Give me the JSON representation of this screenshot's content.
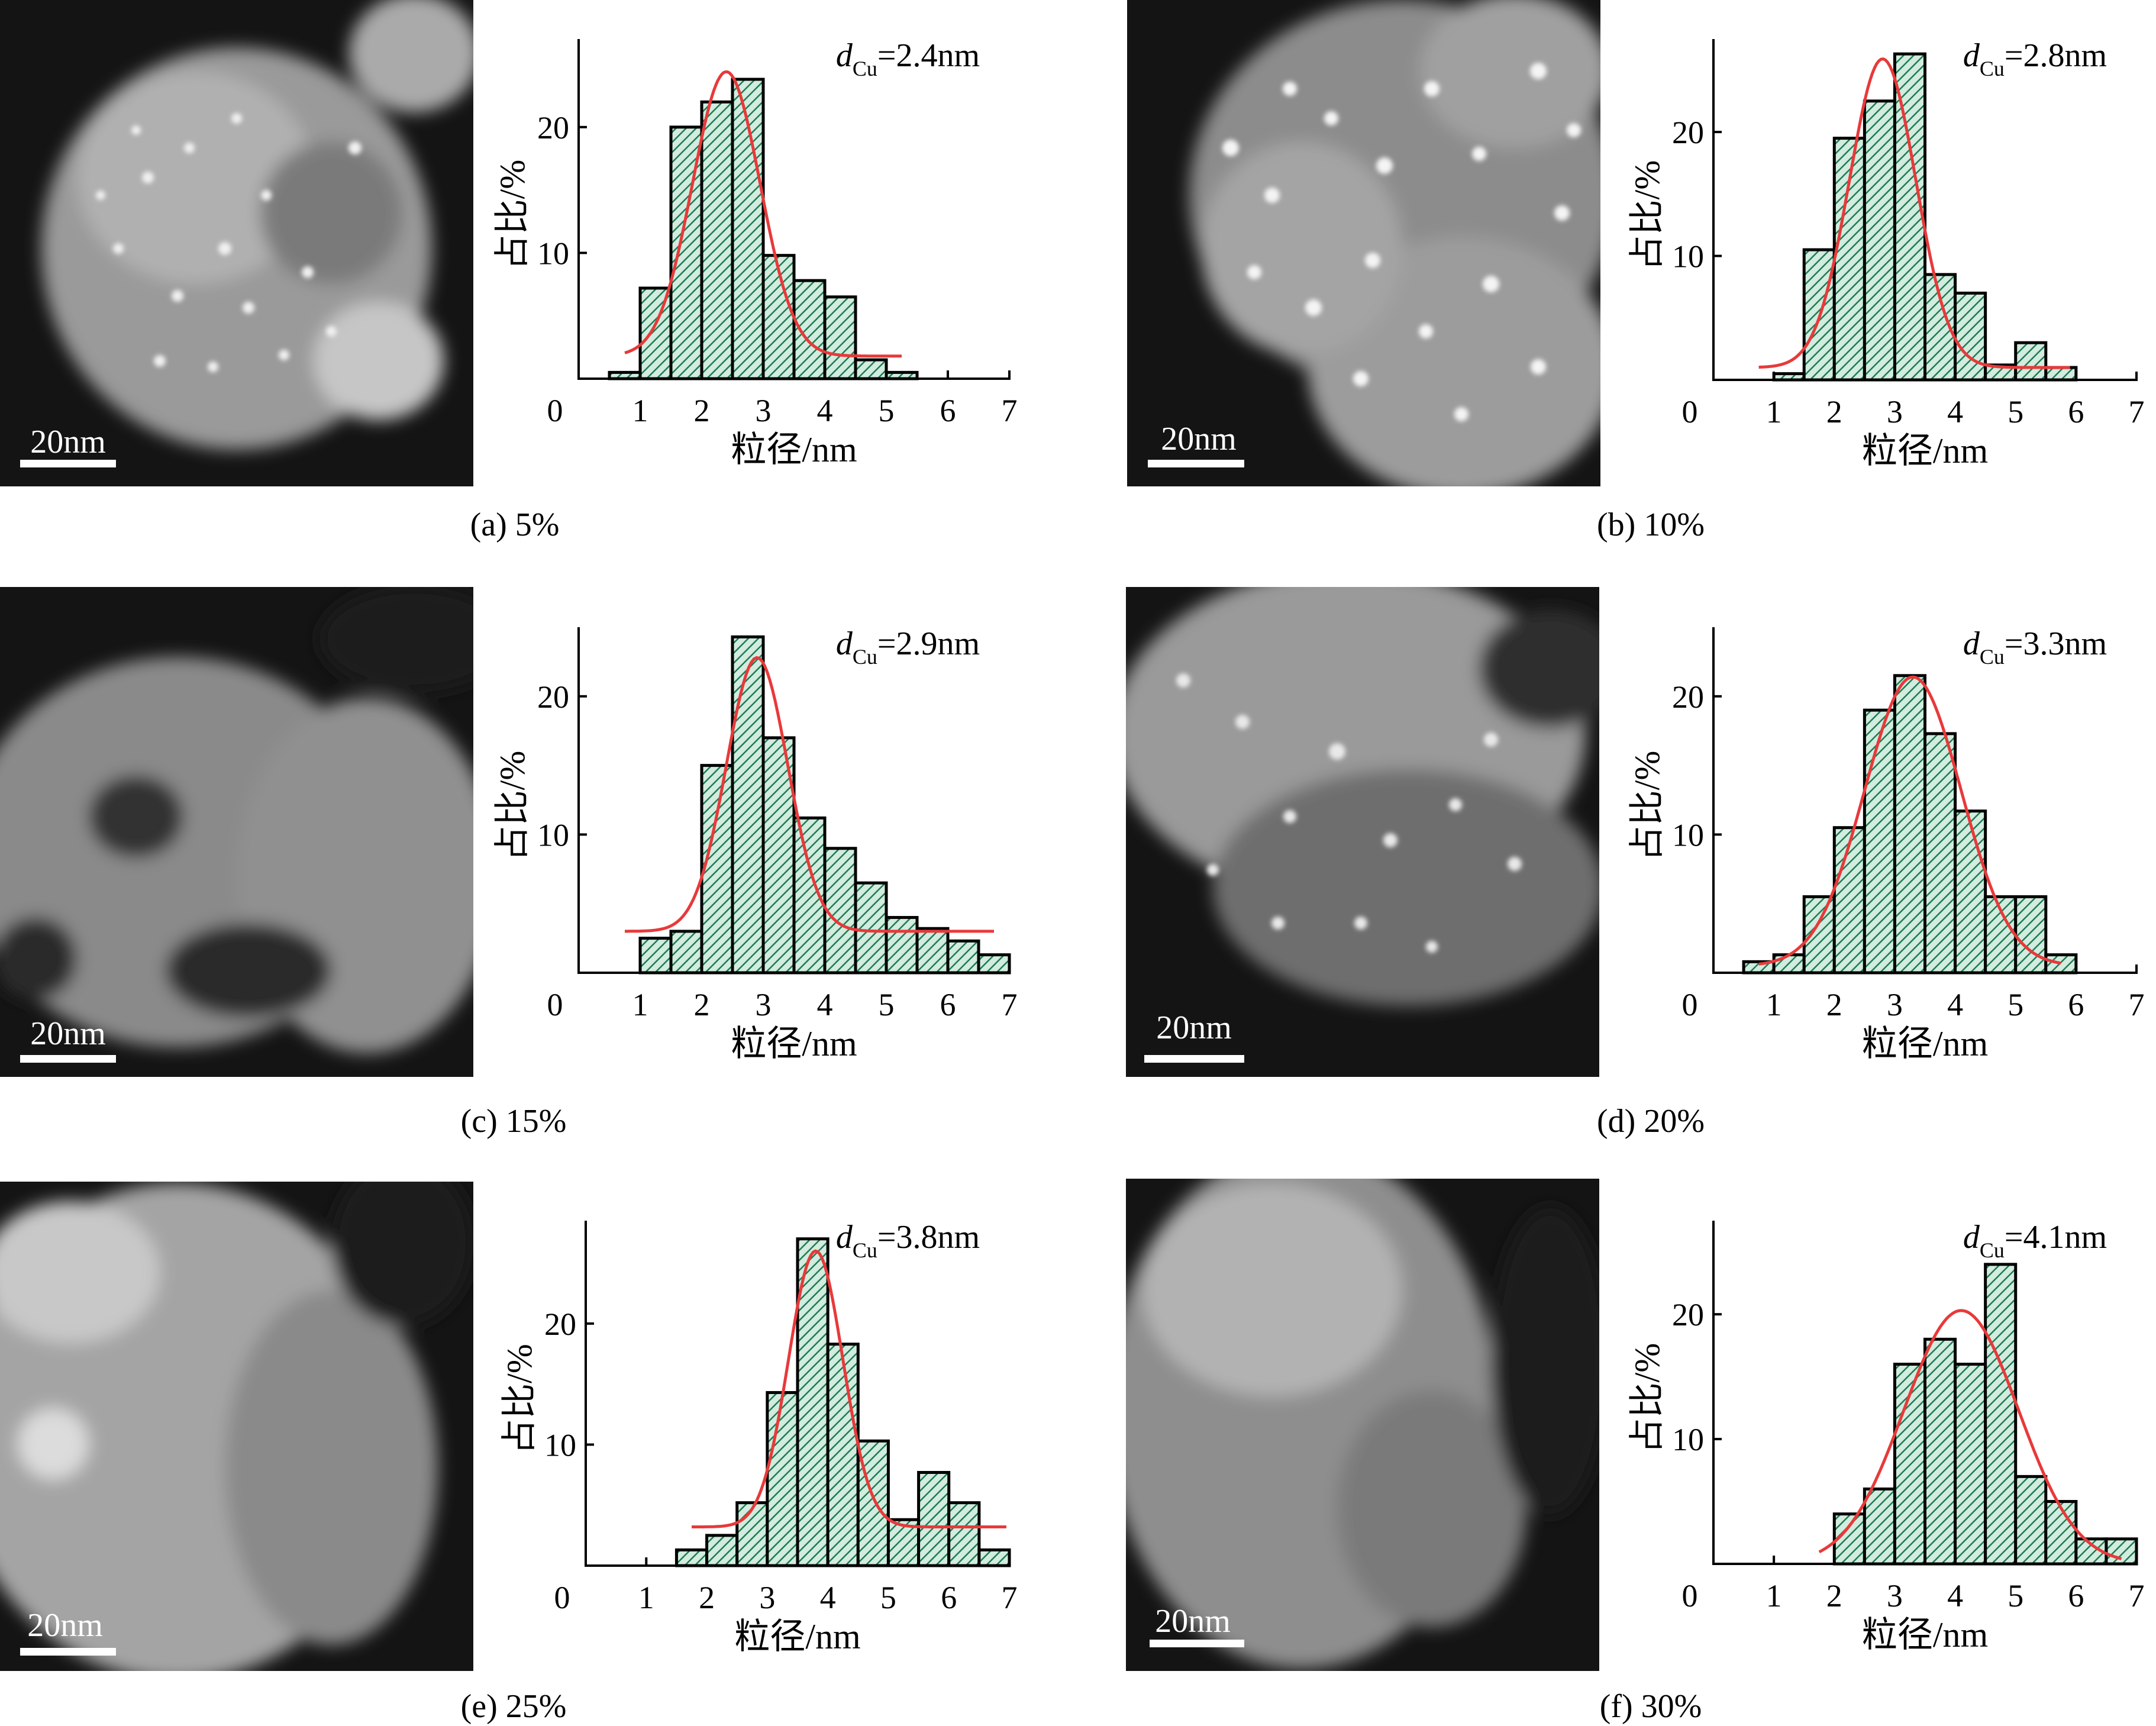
{
  "colors": {
    "bar_fill": "#d2ecdf",
    "bar_hatch": "#1f7a52",
    "bar_stroke": "#000000",
    "fit_curve": "#e8393a",
    "axis": "#000000",
    "image_dark": "#141414",
    "image_bright": "#e6e6e6"
  },
  "panels": [
    {
      "caption": "(a) 5%",
      "scale_bar_label": "20nm",
      "icon": "stem-micrograph-image"
    },
    {
      "caption": "(b) 10%",
      "scale_bar_label": "20nm",
      "icon": "stem-micrograph-image"
    },
    {
      "caption": "(c) 15%",
      "scale_bar_label": "20nm",
      "icon": "stem-micrograph-image"
    },
    {
      "caption": "(d) 20%",
      "scale_bar_label": "20nm",
      "icon": "stem-micrograph-image"
    },
    {
      "caption": "(e) 25%",
      "scale_bar_label": "20nm",
      "icon": "stem-micrograph-image"
    },
    {
      "caption": "(f) 30%",
      "scale_bar_label": "20nm",
      "icon": "stem-micrograph-image"
    }
  ],
  "chart_data": [
    {
      "type": "bar",
      "title": "",
      "annotation": {
        "d": "d",
        "sub": "Cu",
        "value": "=2.4nm"
      },
      "xlabel": "粒径/nm",
      "ylabel": "占比/%",
      "xlim": [
        0,
        7
      ],
      "ylim": [
        0,
        27
      ],
      "xticks": [
        "0",
        "1",
        "2",
        "3",
        "4",
        "5",
        "6",
        "7"
      ],
      "yticks": [
        10,
        20
      ],
      "bin_width": 0.5,
      "x": [
        0.75,
        1.25,
        1.75,
        2.25,
        2.75,
        3.25,
        3.75,
        4.25,
        4.75,
        5.25
      ],
      "values": [
        0.5,
        7.2,
        20.0,
        22.0,
        23.8,
        9.8,
        7.8,
        6.5,
        1.5,
        0.5
      ],
      "fit": {
        "model": "gaussian",
        "mu": 2.4,
        "sigma": 0.55,
        "amplitude": 22.6,
        "baseline": 1.8,
        "x_range": [
          0.75,
          5.25
        ]
      }
    },
    {
      "type": "bar",
      "title": "",
      "annotation": {
        "d": "d",
        "sub": "Cu",
        "value": "=2.8nm"
      },
      "xlabel": "粒径/nm",
      "ylabel": "占比/%",
      "xlim": [
        0,
        7
      ],
      "ylim": [
        0,
        27.5
      ],
      "xticks": [
        "0",
        "1",
        "2",
        "3",
        "4",
        "5",
        "6",
        "7"
      ],
      "yticks": [
        10,
        20
      ],
      "bin_width": 0.5,
      "x": [
        1.25,
        1.75,
        2.25,
        2.75,
        3.25,
        3.75,
        4.25,
        4.75,
        5.25,
        5.75
      ],
      "values": [
        0.5,
        10.5,
        19.5,
        22.5,
        26.3,
        8.5,
        7.0,
        1.2,
        3.0,
        1.0
      ],
      "fit": {
        "model": "gaussian",
        "mu": 2.8,
        "sigma": 0.55,
        "amplitude": 24.9,
        "baseline": 1.0,
        "x_range": [
          0.75,
          5.9
        ]
      }
    },
    {
      "type": "bar",
      "title": "",
      "annotation": {
        "d": "d",
        "sub": "Cu",
        "value": "=2.9nm"
      },
      "xlabel": "粒径/nm",
      "ylabel": "占比/%",
      "xlim": [
        0,
        7
      ],
      "ylim": [
        0,
        25
      ],
      "xticks": [
        "0",
        "1",
        "2",
        "3",
        "4",
        "5",
        "6",
        "7"
      ],
      "yticks": [
        10,
        20
      ],
      "bin_width": 0.5,
      "x": [
        1.25,
        1.75,
        2.25,
        2.75,
        3.25,
        3.75,
        4.25,
        4.75,
        5.25,
        5.75,
        6.25,
        6.75
      ],
      "values": [
        2.5,
        3.0,
        15.0,
        24.3,
        17.0,
        11.2,
        9.0,
        6.5,
        4.0,
        3.2,
        2.3,
        1.3
      ],
      "fit": {
        "model": "gaussian",
        "mu": 2.9,
        "sigma": 0.5,
        "amplitude": 19.8,
        "baseline": 3.0,
        "x_range": [
          0.75,
          6.75
        ]
      }
    },
    {
      "type": "bar",
      "title": "",
      "annotation": {
        "d": "d",
        "sub": "Cu",
        "value": "=3.3nm"
      },
      "xlabel": "粒径/nm",
      "ylabel": "占比/%",
      "xlim": [
        0,
        7
      ],
      "ylim": [
        0,
        25
      ],
      "xticks": [
        "0",
        "1",
        "2",
        "3",
        "4",
        "5",
        "6",
        "7"
      ],
      "yticks": [
        10,
        20
      ],
      "bin_width": 0.5,
      "x": [
        0.75,
        1.25,
        1.75,
        2.25,
        2.75,
        3.25,
        3.75,
        4.25,
        4.75,
        5.25,
        5.75
      ],
      "values": [
        0.8,
        1.3,
        5.5,
        10.5,
        19.0,
        21.5,
        17.3,
        11.7,
        5.5,
        5.5,
        1.3
      ],
      "fit": {
        "model": "gaussian",
        "mu": 3.3,
        "sigma": 0.8,
        "amplitude": 20.9,
        "baseline": 0.5,
        "x_range": [
          0.75,
          5.75
        ]
      }
    },
    {
      "type": "bar",
      "title": "",
      "annotation": {
        "d": "d",
        "sub": "Cu",
        "value": "=3.8nm"
      },
      "xlabel": "粒径/nm",
      "ylabel": "占比/%",
      "xlim": [
        0,
        7
      ],
      "ylim": [
        0,
        28.5
      ],
      "xticks": [
        "0",
        "1",
        "2",
        "3",
        "4",
        "5",
        "6",
        "7"
      ],
      "yticks": [
        10,
        20
      ],
      "bin_width": 0.5,
      "x": [
        1.75,
        2.25,
        2.75,
        3.25,
        3.75,
        4.25,
        4.75,
        5.25,
        5.75,
        6.25,
        6.75
      ],
      "values": [
        1.3,
        2.5,
        5.2,
        14.3,
        27.0,
        18.3,
        10.3,
        3.8,
        7.7,
        5.2,
        1.3
      ],
      "fit": {
        "model": "gaussian",
        "mu": 3.8,
        "sigma": 0.45,
        "amplitude": 22.8,
        "baseline": 3.2,
        "x_range": [
          1.75,
          6.95
        ]
      }
    },
    {
      "type": "bar",
      "title": "",
      "annotation": {
        "d": "d",
        "sub": "Cu",
        "value": "=4.1nm"
      },
      "xlabel": "粒径/nm",
      "ylabel": "占比/%",
      "xlim": [
        0,
        7
      ],
      "ylim": [
        0,
        27.5
      ],
      "xticks": [
        "0",
        "1",
        "2",
        "3",
        "4",
        "5",
        "6",
        "7"
      ],
      "yticks": [
        10,
        20
      ],
      "bin_width": 0.5,
      "x": [
        2.25,
        2.75,
        3.25,
        3.75,
        4.25,
        4.75,
        5.25,
        5.75,
        6.25,
        6.75
      ],
      "values": [
        4.0,
        6.0,
        16.0,
        18.0,
        16.0,
        24.0,
        7.0,
        5.0,
        2.0,
        2.0
      ],
      "fit": {
        "model": "gaussian",
        "mu": 4.1,
        "sigma": 0.95,
        "amplitude": 20.3,
        "baseline": 0.0,
        "x_range": [
          1.75,
          6.75
        ]
      }
    }
  ]
}
